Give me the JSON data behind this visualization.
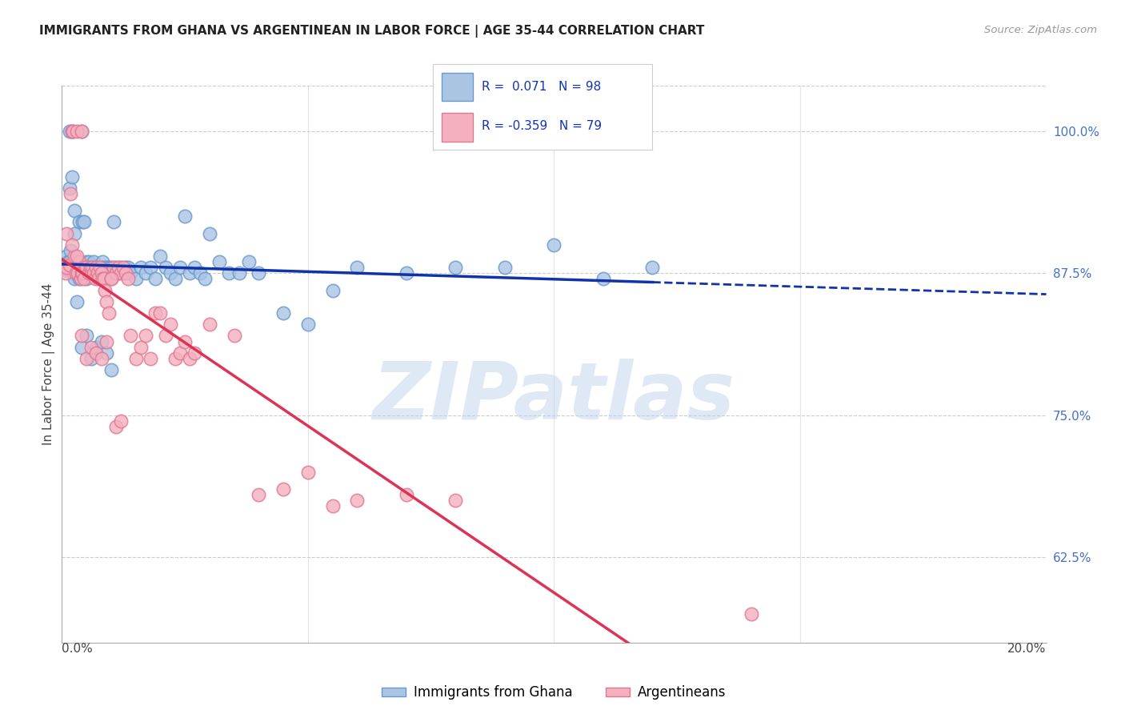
{
  "title": "IMMIGRANTS FROM GHANA VS ARGENTINEAN IN LABOR FORCE | AGE 35-44 CORRELATION CHART",
  "source": "Source: ZipAtlas.com",
  "ylabel": "In Labor Force | Age 35-44",
  "right_yticks": [
    62.5,
    75.0,
    87.5,
    100.0
  ],
  "right_ytick_labels": [
    "62.5%",
    "75.0%",
    "87.5%",
    "100.0%"
  ],
  "xlim": [
    0.0,
    20.0
  ],
  "ylim": [
    55.0,
    104.0
  ],
  "ghana_color": "#aac4e4",
  "argentina_color": "#f5b0c0",
  "ghana_edge_color": "#6699cc",
  "argentina_edge_color": "#e07890",
  "trend_ghana_color": "#1133aa",
  "trend_argentina_color": "#dd3355",
  "ghana_R": 0.071,
  "ghana_N": 98,
  "argentina_R": -0.359,
  "argentina_N": 79,
  "legend_label_ghana": "Immigrants from Ghana",
  "legend_label_argentina": "Argentineans",
  "ghana_points_x": [
    0.05,
    0.08,
    0.1,
    0.1,
    0.12,
    0.12,
    0.15,
    0.15,
    0.18,
    0.2,
    0.2,
    0.22,
    0.25,
    0.25,
    0.28,
    0.3,
    0.3,
    0.32,
    0.35,
    0.35,
    0.38,
    0.4,
    0.4,
    0.42,
    0.45,
    0.48,
    0.5,
    0.5,
    0.55,
    0.58,
    0.6,
    0.6,
    0.62,
    0.65,
    0.68,
    0.7,
    0.72,
    0.75,
    0.78,
    0.8,
    0.82,
    0.85,
    0.88,
    0.9,
    0.92,
    0.95,
    0.98,
    1.0,
    1.05,
    1.1,
    1.15,
    1.2,
    1.25,
    1.3,
    1.35,
    1.4,
    1.5,
    1.6,
    1.7,
    1.8,
    1.9,
    2.0,
    2.1,
    2.2,
    2.3,
    2.4,
    2.5,
    2.6,
    2.7,
    2.8,
    2.9,
    3.0,
    3.2,
    3.4,
    3.6,
    3.8,
    4.0,
    4.5,
    5.0,
    5.5,
    6.0,
    7.0,
    8.0,
    9.0,
    10.0,
    11.0,
    12.0,
    0.15,
    0.2,
    0.25,
    0.3,
    0.4,
    0.5,
    0.6,
    0.7,
    0.8,
    0.9,
    1.0
  ],
  "ghana_points_y": [
    88.2,
    87.8,
    88.0,
    89.0,
    88.0,
    88.5,
    100.0,
    88.5,
    89.5,
    100.0,
    88.0,
    87.5,
    93.0,
    87.0,
    88.0,
    88.0,
    87.5,
    87.5,
    92.0,
    87.0,
    88.0,
    100.0,
    87.5,
    92.0,
    92.0,
    87.5,
    87.0,
    88.5,
    88.5,
    88.0,
    87.5,
    87.5,
    88.0,
    88.5,
    87.5,
    88.0,
    87.5,
    88.0,
    87.5,
    88.0,
    88.5,
    88.0,
    87.5,
    88.0,
    87.5,
    88.0,
    87.5,
    88.0,
    92.0,
    88.0,
    87.5,
    88.0,
    87.5,
    88.0,
    88.0,
    87.5,
    87.0,
    88.0,
    87.5,
    88.0,
    87.0,
    89.0,
    88.0,
    87.5,
    87.0,
    88.0,
    92.5,
    87.5,
    88.0,
    87.5,
    87.0,
    91.0,
    88.5,
    87.5,
    87.5,
    88.5,
    87.5,
    84.0,
    83.0,
    86.0,
    88.0,
    87.5,
    88.0,
    88.0,
    90.0,
    87.0,
    88.0,
    95.0,
    96.0,
    91.0,
    85.0,
    81.0,
    82.0,
    80.0,
    81.0,
    81.5,
    80.5,
    79.0
  ],
  "argentina_points_x": [
    0.05,
    0.08,
    0.1,
    0.15,
    0.18,
    0.2,
    0.22,
    0.25,
    0.28,
    0.3,
    0.32,
    0.35,
    0.38,
    0.4,
    0.4,
    0.42,
    0.45,
    0.48,
    0.5,
    0.55,
    0.58,
    0.6,
    0.62,
    0.65,
    0.68,
    0.7,
    0.72,
    0.75,
    0.78,
    0.8,
    0.82,
    0.85,
    0.88,
    0.9,
    0.95,
    1.0,
    1.05,
    1.1,
    1.15,
    1.2,
    1.25,
    1.3,
    1.35,
    1.4,
    1.5,
    1.6,
    1.7,
    1.8,
    1.9,
    2.0,
    2.1,
    2.2,
    2.3,
    2.4,
    2.5,
    2.6,
    2.7,
    3.0,
    3.5,
    4.0,
    4.5,
    5.0,
    5.5,
    6.0,
    7.0,
    8.0,
    0.1,
    0.2,
    0.3,
    0.4,
    0.5,
    0.6,
    0.7,
    0.8,
    0.9,
    1.0,
    1.1,
    1.2,
    14.0
  ],
  "argentina_points_y": [
    88.0,
    87.5,
    88.0,
    88.2,
    94.5,
    100.0,
    100.0,
    89.0,
    87.5,
    100.0,
    87.5,
    88.5,
    87.0,
    100.0,
    87.5,
    87.5,
    87.0,
    88.0,
    88.0,
    87.5,
    88.0,
    87.5,
    88.0,
    87.5,
    87.0,
    88.0,
    87.5,
    87.0,
    88.0,
    87.5,
    87.0,
    87.0,
    86.0,
    85.0,
    84.0,
    87.0,
    88.0,
    87.5,
    88.0,
    87.5,
    88.0,
    87.5,
    87.0,
    82.0,
    80.0,
    81.0,
    82.0,
    80.0,
    84.0,
    84.0,
    82.0,
    83.0,
    80.0,
    80.5,
    81.5,
    80.0,
    80.5,
    83.0,
    82.0,
    68.0,
    68.5,
    70.0,
    67.0,
    67.5,
    68.0,
    67.5,
    91.0,
    90.0,
    89.0,
    82.0,
    80.0,
    81.0,
    80.5,
    80.0,
    81.5,
    87.0,
    74.0,
    74.5,
    57.5
  ],
  "background_color": "#ffffff",
  "grid_color": "#cccccc",
  "watermark_text": "ZIPatlas",
  "watermark_color": "#c0d4ec",
  "watermark_alpha": 0.5,
  "title_fontsize": 11,
  "source_fontsize": 9.5
}
